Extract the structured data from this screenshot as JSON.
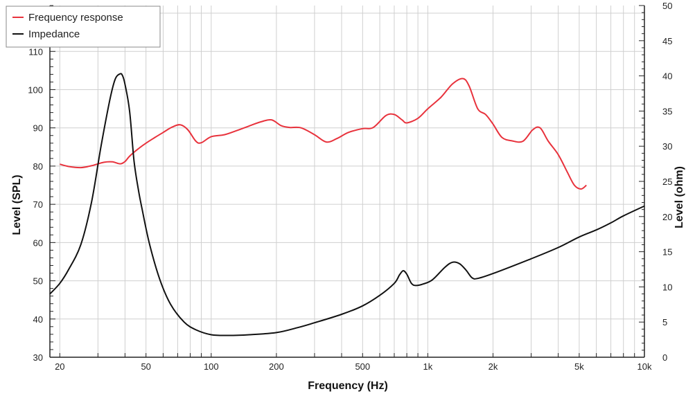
{
  "chart_data": {
    "type": "line",
    "xlabel": "Frequency (Hz)",
    "ylabel": "Level (SPL)",
    "y2label": "Level (ohm)",
    "xscale": "log",
    "xlim": [
      18,
      10000
    ],
    "ylim": [
      30,
      122
    ],
    "y2lim": [
      0,
      50
    ],
    "grid": true,
    "legend_position": "top-left",
    "x_ticks": [
      {
        "value": 20,
        "label": "20"
      },
      {
        "value": 50,
        "label": "50"
      },
      {
        "value": 100,
        "label": "100"
      },
      {
        "value": 200,
        "label": "200"
      },
      {
        "value": 500,
        "label": "500"
      },
      {
        "value": 1000,
        "label": "1k"
      },
      {
        "value": 2000,
        "label": "2k"
      },
      {
        "value": 5000,
        "label": "5k"
      },
      {
        "value": 10000,
        "label": "10k"
      }
    ],
    "y_ticks": [
      30,
      40,
      50,
      60,
      70,
      80,
      90,
      100,
      110,
      120
    ],
    "y2_ticks": [
      0,
      5,
      10,
      15,
      20,
      25,
      30,
      35,
      40,
      45,
      50
    ],
    "series": [
      {
        "name": "Frequency response",
        "color": "#e8323c",
        "axis": "left",
        "x": [
          20,
          22,
          25,
          28,
          32,
          35,
          38,
          40,
          42,
          46,
          50,
          55,
          60,
          66,
          72,
          78,
          85,
          90,
          100,
          115,
          130,
          150,
          170,
          190,
          210,
          230,
          260,
          300,
          340,
          380,
          430,
          500,
          560,
          640,
          700,
          760,
          800,
          900,
          1000,
          1150,
          1300,
          1450,
          1550,
          1700,
          1850,
          2000,
          2200,
          2450,
          2750,
          3050,
          3300,
          3600,
          4000,
          4400,
          4750,
          5100,
          5400
        ],
        "y": [
          80.5,
          79.9,
          79.6,
          80.1,
          81.0,
          81.1,
          80.6,
          81.2,
          82.6,
          84.5,
          86.0,
          87.5,
          88.8,
          90.2,
          90.8,
          89.5,
          86.5,
          86.1,
          87.7,
          88.2,
          89.2,
          90.5,
          91.6,
          92.1,
          90.6,
          90.1,
          90.0,
          88.2,
          86.3,
          87.2,
          88.8,
          89.8,
          90.1,
          93.2,
          93.5,
          92.1,
          91.3,
          92.5,
          95.0,
          98.0,
          101.5,
          102.9,
          101.0,
          95.0,
          93.5,
          91.0,
          87.5,
          86.6,
          86.5,
          89.5,
          90.0,
          86.5,
          83.0,
          78.5,
          75.0,
          74.0,
          75.0
        ]
      },
      {
        "name": "Impedance",
        "color": "#111111",
        "axis": "right",
        "x": [
          18,
          20,
          22,
          25,
          28,
          31,
          34,
          36,
          38,
          39,
          40,
          42,
          44,
          46,
          48,
          52,
          58,
          65,
          75,
          85,
          100,
          120,
          150,
          200,
          250,
          300,
          400,
          500,
          600,
          700,
          740,
          770,
          800,
          840,
          880,
          950,
          1050,
          1200,
          1300,
          1400,
          1500,
          1600,
          1700,
          2000,
          3000,
          4000,
          5000,
          6000,
          7000,
          8000,
          10000
        ],
        "y": [
          9.0,
          10.5,
          12.5,
          16.0,
          22.0,
          30.0,
          36.5,
          39.5,
          40.3,
          40.0,
          38.8,
          35.0,
          28.0,
          24.0,
          21.0,
          16.0,
          11.0,
          7.5,
          5.0,
          3.9,
          3.2,
          3.1,
          3.2,
          3.5,
          4.2,
          4.9,
          6.1,
          7.3,
          8.8,
          10.5,
          11.7,
          12.3,
          11.8,
          10.5,
          10.2,
          10.4,
          11.0,
          12.8,
          13.5,
          13.3,
          12.4,
          11.3,
          11.2,
          11.9,
          14.0,
          15.6,
          17.1,
          18.1,
          19.1,
          20.1,
          21.5
        ]
      }
    ]
  }
}
